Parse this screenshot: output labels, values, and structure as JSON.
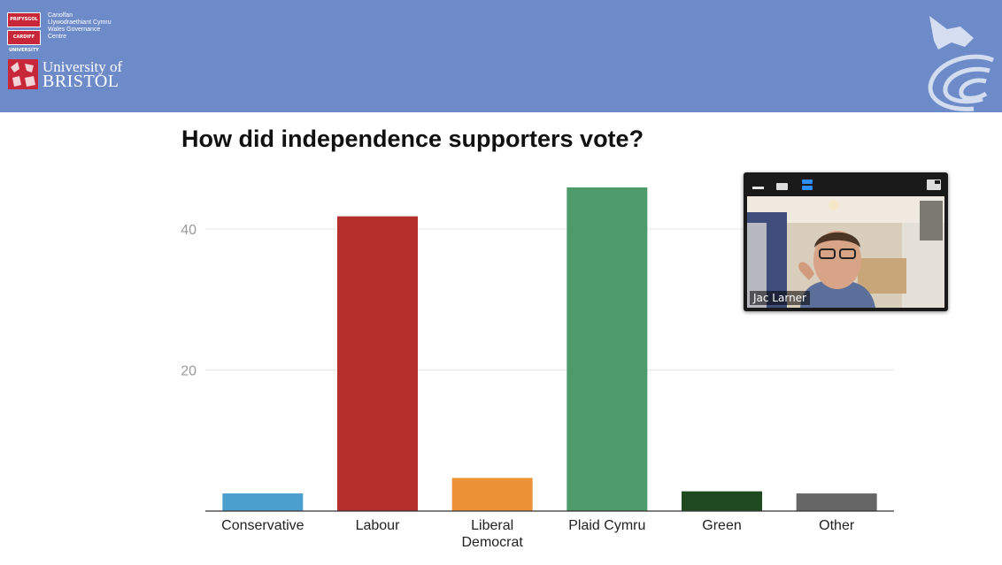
{
  "header": {
    "cardiff": {
      "crest_top": "PRIFYSGOL CAERDYDD",
      "crest_bottom": "CARDIFF UNIVERSITY",
      "lines": [
        "Canolfan",
        "Llywodraethiant Cymru",
        "Wales Governance",
        "Centre"
      ]
    },
    "bristol": {
      "line1": "University of",
      "line2": "BRISTOL"
    },
    "bg_color": "#6d8bc8"
  },
  "chart_data": {
    "type": "bar",
    "title": "How did independence supporters vote?",
    "categories": [
      "Conservative",
      "Labour",
      "Liberal Democrat",
      "Plaid Cymru",
      "Green",
      "Other"
    ],
    "category_lines": [
      [
        "Conservative"
      ],
      [
        "Labour"
      ],
      [
        "Liberal",
        "Democrat"
      ],
      [
        "Plaid Cymru"
      ],
      [
        "Green"
      ],
      [
        "Other"
      ]
    ],
    "values": [
      2.5,
      41.8,
      4.7,
      45.9,
      2.8,
      2.5
    ],
    "colors": [
      "#4a9fcf",
      "#b5302c",
      "#ed9236",
      "#4e9a6a",
      "#1f4a20",
      "#666666"
    ],
    "yticks": [
      20,
      40
    ],
    "ylim": [
      0,
      48
    ],
    "grid": true,
    "legend": "none"
  },
  "video": {
    "participant_name": "Jac Larner",
    "active_color": "#2d8cff"
  }
}
